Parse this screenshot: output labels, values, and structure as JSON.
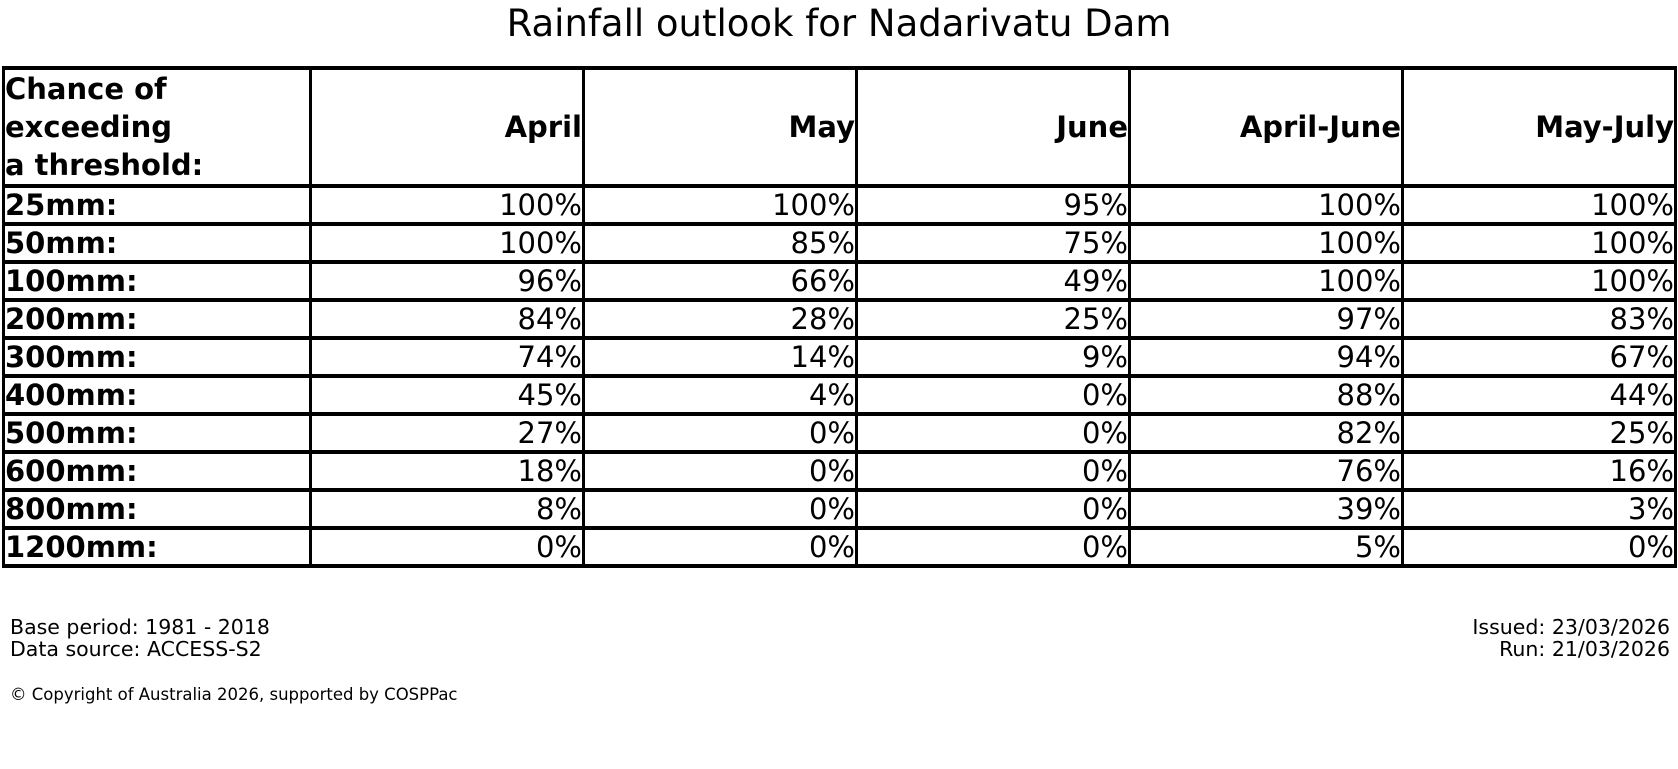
{
  "title": "Rainfall outlook for Nadarivatu Dam",
  "table": {
    "corner_header": "Chance of\nexceeding\na threshold:",
    "columns": [
      "April",
      "May",
      "June",
      "April-June",
      "May-July"
    ],
    "rows": [
      {
        "label": "25mm:",
        "values": [
          "100%",
          "100%",
          "95%",
          "100%",
          "100%"
        ]
      },
      {
        "label": "50mm:",
        "values": [
          "100%",
          "85%",
          "75%",
          "100%",
          "100%"
        ]
      },
      {
        "label": "100mm:",
        "values": [
          "96%",
          "66%",
          "49%",
          "100%",
          "100%"
        ]
      },
      {
        "label": "200mm:",
        "values": [
          "84%",
          "28%",
          "25%",
          "97%",
          "83%"
        ]
      },
      {
        "label": "300mm:",
        "values": [
          "74%",
          "14%",
          "9%",
          "94%",
          "67%"
        ]
      },
      {
        "label": "400mm:",
        "values": [
          "45%",
          "4%",
          "0%",
          "88%",
          "44%"
        ]
      },
      {
        "label": "500mm:",
        "values": [
          "27%",
          "0%",
          "0%",
          "82%",
          "25%"
        ]
      },
      {
        "label": "600mm:",
        "values": [
          "18%",
          "0%",
          "0%",
          "76%",
          "16%"
        ]
      },
      {
        "label": "800mm:",
        "values": [
          "8%",
          "0%",
          "0%",
          "39%",
          "3%"
        ]
      },
      {
        "label": "1200mm:",
        "values": [
          "0%",
          "0%",
          "0%",
          "5%",
          "0%"
        ]
      }
    ]
  },
  "footer": {
    "base_period": "Base period: 1981 - 2018",
    "data_source": "Data source: ACCESS-S2",
    "issued": "Issued: 23/03/2026",
    "run": "Run: 21/03/2026",
    "copyright": "© Copyright of Australia 2026, supported by COSPPac"
  },
  "colors": {
    "text": "#000000",
    "border": "#000000",
    "background": "#ffffff"
  },
  "chart_data": {
    "type": "table",
    "title": "Rainfall outlook for Nadarivatu Dam",
    "row_header": "Chance of exceeding a threshold:",
    "unit": "%",
    "categories": [
      "25mm",
      "50mm",
      "100mm",
      "200mm",
      "300mm",
      "400mm",
      "500mm",
      "600mm",
      "800mm",
      "1200mm"
    ],
    "series": [
      {
        "name": "April",
        "values": [
          100,
          100,
          96,
          84,
          74,
          45,
          27,
          18,
          8,
          0
        ]
      },
      {
        "name": "May",
        "values": [
          100,
          85,
          66,
          28,
          14,
          4,
          0,
          0,
          0,
          0
        ]
      },
      {
        "name": "June",
        "values": [
          95,
          75,
          49,
          25,
          9,
          0,
          0,
          0,
          0,
          0
        ]
      },
      {
        "name": "April-June",
        "values": [
          100,
          100,
          100,
          97,
          94,
          88,
          82,
          76,
          39,
          5
        ]
      },
      {
        "name": "May-July",
        "values": [
          100,
          100,
          100,
          83,
          67,
          44,
          25,
          16,
          3,
          0
        ]
      }
    ]
  }
}
